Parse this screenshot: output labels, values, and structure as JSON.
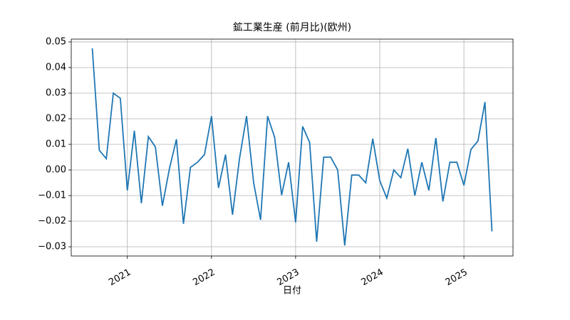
{
  "chart_data": {
    "type": "line",
    "title": "鉱工業生産 (前月比)(欧州)",
    "x_label": "日付",
    "x": [
      "2020-08",
      "2020-09",
      "2020-10",
      "2020-11",
      "2020-12",
      "2021-01",
      "2021-02",
      "2021-03",
      "2021-04",
      "2021-05",
      "2021-06",
      "2021-07",
      "2021-08",
      "2021-09",
      "2021-10",
      "2021-11",
      "2021-12",
      "2022-01",
      "2022-02",
      "2022-03",
      "2022-04",
      "2022-05",
      "2022-06",
      "2022-07",
      "2022-08",
      "2022-09",
      "2022-10",
      "2022-11",
      "2022-12",
      "2023-01",
      "2023-02",
      "2023-03",
      "2023-04",
      "2023-05",
      "2023-06",
      "2023-07",
      "2023-08",
      "2023-09",
      "2023-10",
      "2023-11",
      "2023-12",
      "2024-01",
      "2024-02",
      "2024-03",
      "2024-04",
      "2024-05",
      "2024-06",
      "2024-07",
      "2024-08",
      "2024-09",
      "2024-10",
      "2024-11",
      "2024-12",
      "2025-01",
      "2025-02",
      "2025-03",
      "2025-04",
      "2025-05"
    ],
    "series": [
      {
        "color": "#1f77b4",
        "values": [
          0.0475,
          0.0077,
          0.0044,
          0.03,
          0.028,
          -0.008,
          0.0153,
          -0.013,
          0.013,
          0.009,
          -0.014,
          0.0005,
          0.012,
          -0.021,
          0.001,
          0.003,
          0.006,
          0.021,
          -0.007,
          0.006,
          -0.0175,
          0.0045,
          0.021,
          -0.0048,
          -0.0195,
          0.021,
          0.0128,
          -0.0098,
          0.003,
          -0.0205,
          0.017,
          0.0107,
          -0.028,
          0.005,
          0.005,
          0.0,
          -0.0295,
          -0.002,
          -0.002,
          -0.005,
          0.0122,
          -0.0042,
          -0.011,
          0.0,
          -0.003,
          0.0083,
          -0.01,
          0.003,
          -0.008,
          0.0125,
          -0.0123,
          0.003,
          0.003,
          -0.006,
          0.008,
          0.0113,
          0.0265,
          -0.024
        ]
      }
    ],
    "xlim": [
      "2020-05",
      "2025-08"
    ],
    "xticks": [
      {
        "value": "2021-01",
        "label": "2021"
      },
      {
        "value": "2022-01",
        "label": "2022"
      },
      {
        "value": "2023-01",
        "label": "2023"
      },
      {
        "value": "2024-01",
        "label": "2024"
      },
      {
        "value": "2025-01",
        "label": "2025"
      }
    ],
    "ylim": [
      -0.0336,
      0.0511
    ],
    "yticks": [
      {
        "value": -0.03,
        "label": "−0.03"
      },
      {
        "value": -0.02,
        "label": "−0.02"
      },
      {
        "value": -0.01,
        "label": "−0.01"
      },
      {
        "value": 0,
        "label": "0.00"
      },
      0.01,
      0.02,
      0.03,
      0.04,
      0.05
    ],
    "grid": true
  }
}
